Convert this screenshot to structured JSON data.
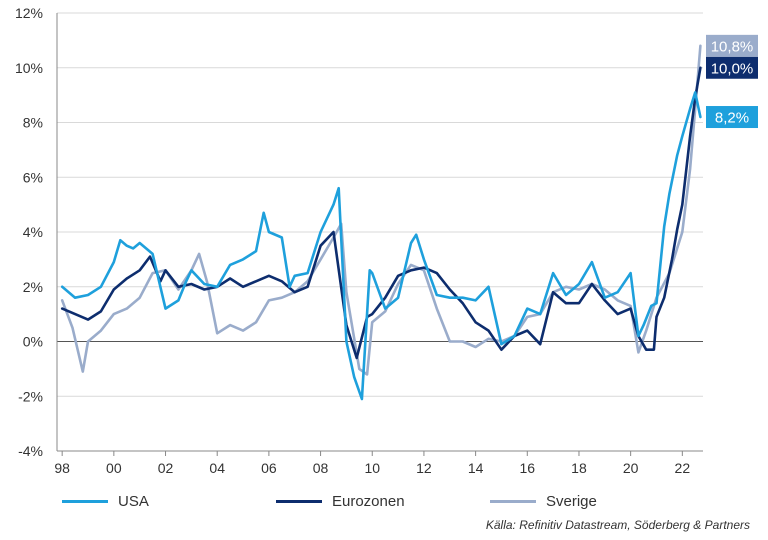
{
  "chart_data": {
    "type": "line",
    "title": "",
    "xlabel": "",
    "ylabel": "",
    "ylim": [
      -4,
      12
    ],
    "xlim": [
      1997.8,
      2022.8
    ],
    "y_ticks": [
      -4,
      -2,
      0,
      2,
      4,
      6,
      8,
      10,
      12
    ],
    "y_tick_labels": [
      "-4%",
      "-2%",
      "0%",
      "2%",
      "4%",
      "6%",
      "8%",
      "10%",
      "12%"
    ],
    "x_ticks": [
      1998,
      2000,
      2002,
      2004,
      2006,
      2008,
      2010,
      2012,
      2014,
      2016,
      2018,
      2020,
      2022
    ],
    "x_tick_labels": [
      "98",
      "00",
      "02",
      "04",
      "06",
      "08",
      "10",
      "12",
      "14",
      "16",
      "18",
      "20",
      "22"
    ],
    "grid": "horizontal",
    "legend_position": "bottom",
    "series": [
      {
        "name": "USA",
        "color": "#1ea0dc",
        "end_label": "8,2%",
        "x": [
          1998.0,
          1998.5,
          1999.0,
          1999.5,
          2000.0,
          2000.25,
          2000.5,
          2000.75,
          2001.0,
          2001.5,
          2002.0,
          2002.5,
          2002.8,
          2003.0,
          2003.5,
          2004.0,
          2004.5,
          2005.0,
          2005.5,
          2005.8,
          2006.0,
          2006.5,
          2006.8,
          2007.0,
          2007.5,
          2008.0,
          2008.5,
          2008.7,
          2009.0,
          2009.3,
          2009.6,
          2009.9,
          2010.0,
          2010.5,
          2011.0,
          2011.5,
          2011.7,
          2012.0,
          2012.5,
          2013.0,
          2013.5,
          2014.0,
          2014.5,
          2015.0,
          2015.5,
          2016.0,
          2016.5,
          2017.0,
          2017.5,
          2018.0,
          2018.5,
          2019.0,
          2019.5,
          2020.0,
          2020.3,
          2020.5,
          2020.8,
          2021.0,
          2021.3,
          2021.5,
          2021.8,
          2022.0,
          2022.3,
          2022.5,
          2022.7
        ],
        "values": [
          2.0,
          1.6,
          1.7,
          2.0,
          2.9,
          3.7,
          3.5,
          3.4,
          3.6,
          3.2,
          1.2,
          1.5,
          2.2,
          2.6,
          2.1,
          2.0,
          2.8,
          3.0,
          3.3,
          4.7,
          4.0,
          3.8,
          2.0,
          2.4,
          2.5,
          4.0,
          5.0,
          5.6,
          0.0,
          -1.3,
          -2.1,
          2.6,
          2.5,
          1.2,
          1.6,
          3.6,
          3.9,
          3.0,
          1.7,
          1.6,
          1.6,
          1.5,
          2.0,
          -0.1,
          0.2,
          1.2,
          1.0,
          2.5,
          1.7,
          2.1,
          2.9,
          1.6,
          1.8,
          2.5,
          0.2,
          0.6,
          1.3,
          1.4,
          4.2,
          5.4,
          6.8,
          7.5,
          8.5,
          9.1,
          8.2
        ]
      },
      {
        "name": "Eurozonen",
        "color": "#0d2d6e",
        "end_label": "10,0%",
        "x": [
          1998.0,
          1998.5,
          1999.0,
          1999.5,
          2000.0,
          2000.5,
          2001.0,
          2001.4,
          2001.8,
          2002.0,
          2002.5,
          2003.0,
          2003.5,
          2004.0,
          2004.5,
          2005.0,
          2005.5,
          2006.0,
          2006.5,
          2007.0,
          2007.5,
          2008.0,
          2008.5,
          2009.0,
          2009.4,
          2009.8,
          2010.0,
          2010.5,
          2011.0,
          2011.5,
          2012.0,
          2012.5,
          2013.0,
          2013.5,
          2014.0,
          2014.5,
          2015.0,
          2015.5,
          2016.0,
          2016.5,
          2017.0,
          2017.5,
          2018.0,
          2018.5,
          2019.0,
          2019.5,
          2020.0,
          2020.3,
          2020.6,
          2020.9,
          2021.0,
          2021.3,
          2021.6,
          2021.8,
          2022.0,
          2022.3,
          2022.5,
          2022.7
        ],
        "values": [
          1.2,
          1.0,
          0.8,
          1.1,
          1.9,
          2.3,
          2.6,
          3.1,
          2.2,
          2.6,
          2.0,
          2.1,
          1.9,
          2.0,
          2.3,
          2.0,
          2.2,
          2.4,
          2.2,
          1.8,
          2.0,
          3.5,
          4.0,
          0.6,
          -0.6,
          0.9,
          1.0,
          1.6,
          2.4,
          2.6,
          2.7,
          2.5,
          1.9,
          1.4,
          0.7,
          0.4,
          -0.3,
          0.2,
          0.4,
          -0.1,
          1.8,
          1.4,
          1.4,
          2.1,
          1.5,
          1.0,
          1.2,
          0.2,
          -0.3,
          -0.3,
          0.9,
          1.6,
          3.0,
          4.1,
          5.0,
          7.5,
          8.9,
          10.0
        ]
      },
      {
        "name": "Sverige",
        "color": "#9aaccb",
        "end_label": "10,8%",
        "x": [
          1998.0,
          1998.4,
          1998.8,
          1999.0,
          1999.5,
          2000.0,
          2000.5,
          2001.0,
          2001.5,
          2002.0,
          2002.5,
          2003.0,
          2003.3,
          2003.6,
          2004.0,
          2004.5,
          2005.0,
          2005.5,
          2006.0,
          2006.5,
          2007.0,
          2007.5,
          2008.0,
          2008.5,
          2008.8,
          2009.0,
          2009.5,
          2009.8,
          2010.0,
          2010.5,
          2011.0,
          2011.5,
          2012.0,
          2012.5,
          2013.0,
          2013.5,
          2014.0,
          2014.5,
          2015.0,
          2015.5,
          2016.0,
          2016.5,
          2017.0,
          2017.5,
          2018.0,
          2018.5,
          2019.0,
          2019.5,
          2020.0,
          2020.3,
          2020.6,
          2021.0,
          2021.5,
          2022.0,
          2022.3,
          2022.5,
          2022.7
        ],
        "values": [
          1.5,
          0.5,
          -1.1,
          0.0,
          0.4,
          1.0,
          1.2,
          1.6,
          2.5,
          2.6,
          1.9,
          2.6,
          3.2,
          2.2,
          0.3,
          0.6,
          0.4,
          0.7,
          1.5,
          1.6,
          1.8,
          2.2,
          3.0,
          3.8,
          4.3,
          1.8,
          -1.0,
          -1.2,
          0.7,
          1.1,
          2.1,
          2.8,
          2.6,
          1.2,
          0.0,
          0.0,
          -0.2,
          0.1,
          0.0,
          0.2,
          0.9,
          1.0,
          1.8,
          2.0,
          1.9,
          2.1,
          1.9,
          1.5,
          1.3,
          -0.4,
          0.4,
          1.6,
          2.5,
          4.0,
          6.3,
          8.5,
          10.8
        ]
      }
    ]
  },
  "source": "Källa: Refinitiv Datastream, Söderberg & Partners"
}
